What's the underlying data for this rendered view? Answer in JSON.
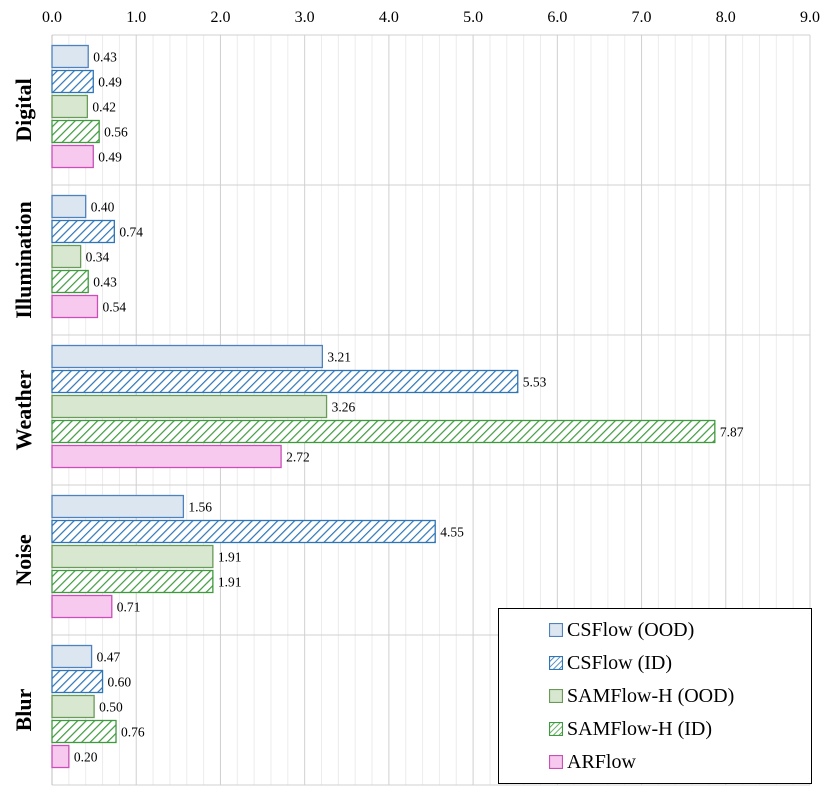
{
  "chart_data": {
    "type": "bar",
    "orientation": "horizontal",
    "title": "",
    "xlabel": "",
    "ylabel": "",
    "xlim": [
      0,
      9
    ],
    "x_ticks": [
      "0.0",
      "1.0",
      "2.0",
      "3.0",
      "4.0",
      "5.0",
      "6.0",
      "7.0",
      "8.0",
      "9.0"
    ],
    "x_axis_position": "top",
    "grid": true,
    "legend_position": "bottom-right",
    "categories": [
      "Digital",
      "Illumination",
      "Weather",
      "Noise",
      "Blur"
    ],
    "series": [
      {
        "name": "CSFlow (OOD)",
        "fill": "#dce6f1",
        "stroke": "#4f81bd",
        "pattern": "solid",
        "values": [
          0.43,
          0.4,
          3.21,
          1.56,
          0.47
        ],
        "labels": [
          "0.43",
          "0.40",
          "3.21",
          "1.56",
          "0.47"
        ]
      },
      {
        "name": "CSFlow (ID)",
        "fill": "#ffffff",
        "stroke": "#2e75b6",
        "pattern": "hatch",
        "values": [
          0.49,
          0.74,
          5.53,
          4.55,
          0.6
        ],
        "labels": [
          "0.49",
          "0.74",
          "5.53",
          "4.55",
          "0.60"
        ]
      },
      {
        "name": "SAMFlow-H (OOD)",
        "fill": "#d8e8d0",
        "stroke": "#6a9a58",
        "pattern": "solid",
        "values": [
          0.42,
          0.34,
          3.26,
          1.91,
          0.5
        ],
        "labels": [
          "0.42",
          "0.34",
          "3.26",
          "1.91",
          "0.50"
        ]
      },
      {
        "name": "SAMFlow-H (ID)",
        "fill": "#ffffff",
        "stroke": "#3f9a3f",
        "pattern": "hatch",
        "values": [
          0.56,
          0.43,
          7.87,
          1.91,
          0.76
        ],
        "labels": [
          "0.56",
          "0.43",
          "7.87",
          "1.91",
          "0.76"
        ]
      },
      {
        "name": "ARFlow",
        "fill": "#f7c9ef",
        "stroke": "#c850b8",
        "pattern": "solid",
        "values": [
          0.49,
          0.54,
          2.72,
          0.71,
          0.2
        ],
        "labels": [
          "0.49",
          "0.54",
          "2.72",
          "0.71",
          "0.20"
        ]
      }
    ]
  }
}
